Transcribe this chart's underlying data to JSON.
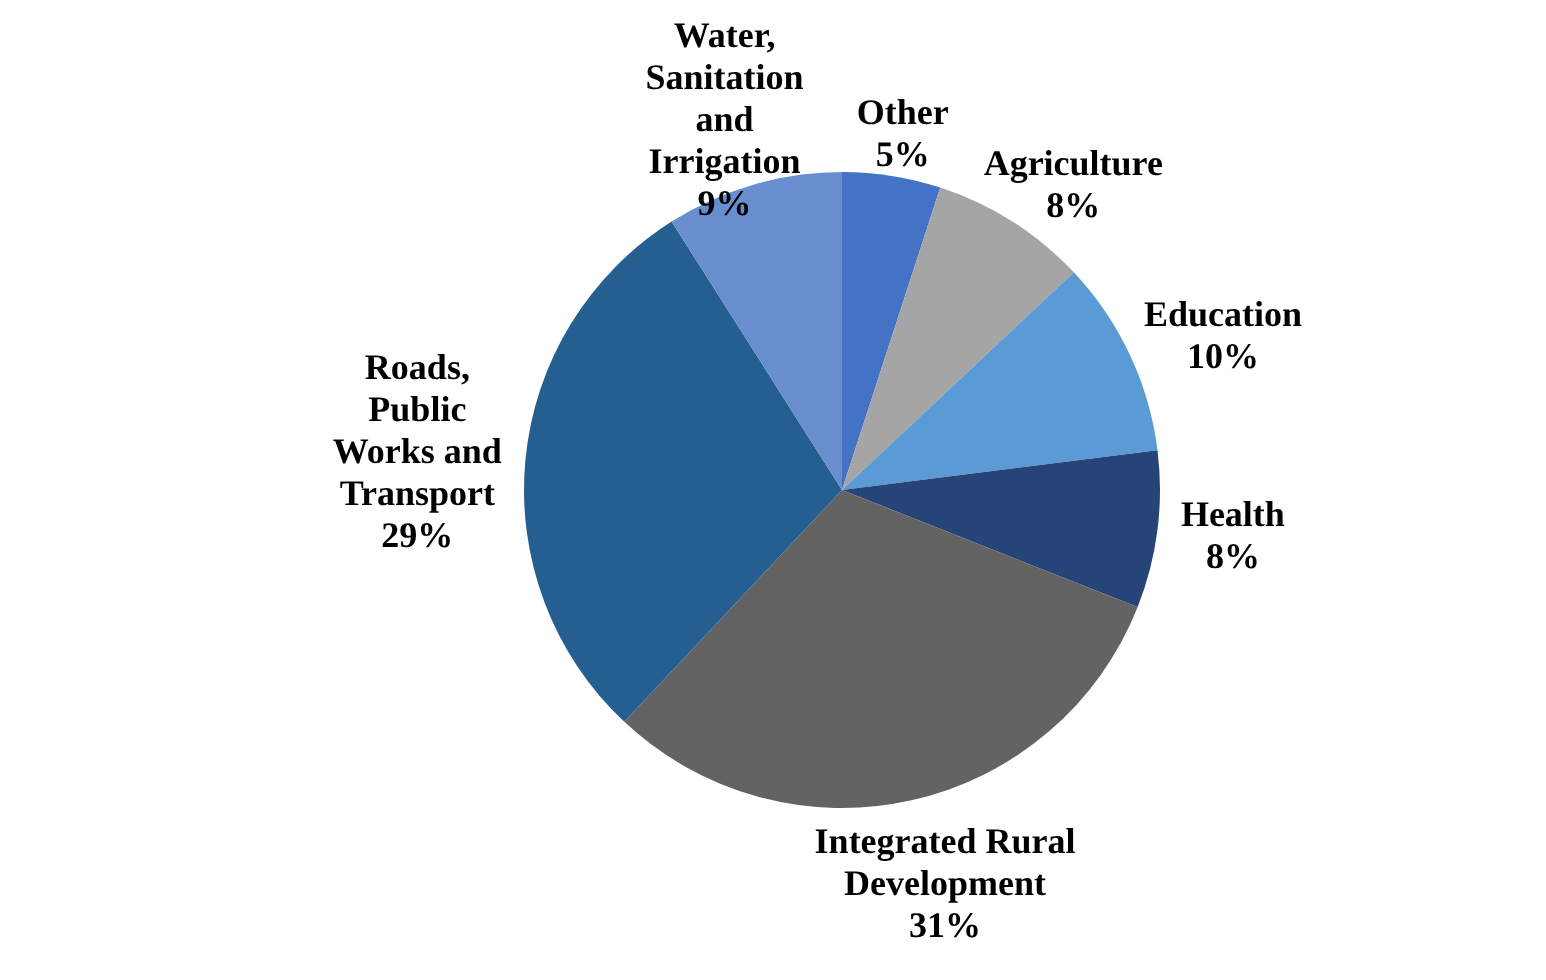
{
  "chart_data": {
    "type": "pie",
    "categories": [
      "Other",
      "Agriculture",
      "Education",
      "Health",
      "Integrated Rural Development",
      "Roads, Public Works and Transport",
      "Water, Sanitation and Irrigation"
    ],
    "values": [
      5,
      8,
      10,
      8,
      31,
      29,
      9
    ],
    "colors": [
      "#4472c4",
      "#a5a5a5",
      "#5b9bd5",
      "#264478",
      "#636363",
      "#255e91",
      "#698ed0"
    ],
    "value_labels": [
      "5%",
      "8%",
      "10%",
      "8%",
      "31%",
      "29%",
      "9%"
    ],
    "legend": false
  }
}
